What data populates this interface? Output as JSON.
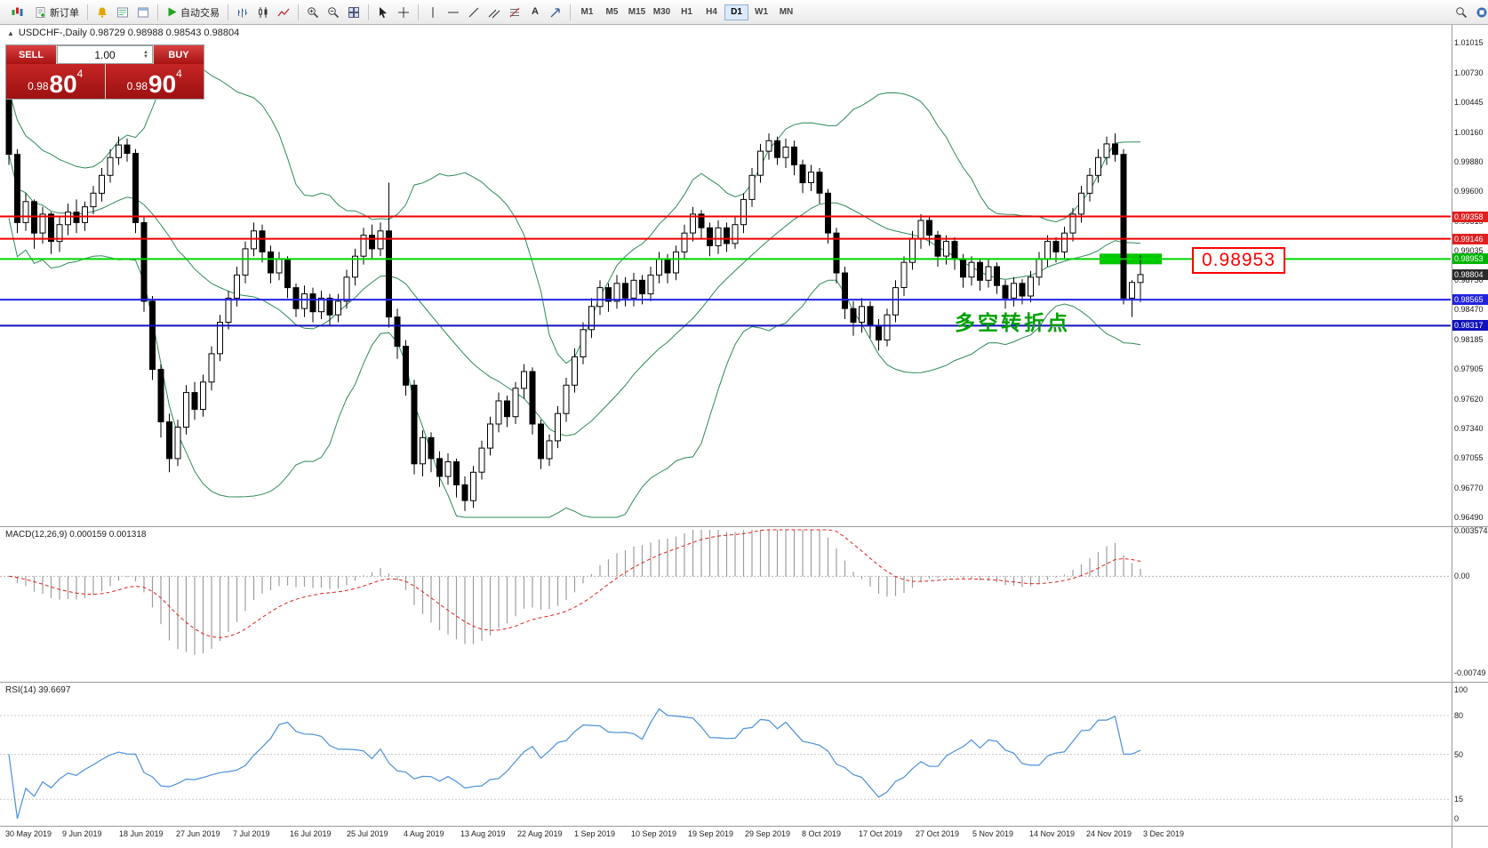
{
  "toolbar": {
    "new_order": "新订单",
    "auto_trading": "自动交易",
    "timeframes": [
      "M1",
      "M5",
      "M15",
      "M30",
      "H1",
      "H4",
      "D1",
      "W1",
      "MN"
    ],
    "active_timeframe": "D1"
  },
  "symbol_line": {
    "text": "USDCHF-,Daily 0.98729 0.98988 0.98543 0.98804"
  },
  "trade_panel": {
    "sell_label": "SELL",
    "buy_label": "BUY",
    "volume": "1.00",
    "sell_price_small": "0.98",
    "sell_price_big": "80",
    "sell_price_sup": "4",
    "buy_price_small": "0.98",
    "buy_price_big": "90",
    "buy_price_sup": "4",
    "panel_color": "#b81c1c"
  },
  "annotations": {
    "turning_point_text": "多空转折点",
    "turning_point_color": "#00a000",
    "price_callout": "0.98953",
    "callout_color": "#ff0000",
    "highlight_price": 0.98953,
    "highlight_color": "#00c800"
  },
  "levels": [
    {
      "price": 0.99358,
      "color": "#f00000",
      "width": 2,
      "type": "resistance"
    },
    {
      "price": 0.99146,
      "color": "#f00000",
      "width": 2,
      "type": "resistance"
    },
    {
      "price": 0.98953,
      "color": "#00d400",
      "width": 2,
      "type": "pivot"
    },
    {
      "price": 0.98565,
      "color": "#2222ee",
      "width": 2,
      "type": "support"
    },
    {
      "price": 0.98317,
      "color": "#1111bb",
      "width": 2,
      "type": "support"
    }
  ],
  "price_axis": {
    "ticks": [
      "1.01015",
      "1.00730",
      "1.00445",
      "1.00160",
      "0.99880",
      "0.99600",
      "0.99315",
      "0.99035",
      "0.98750",
      "0.98470",
      "0.98185",
      "0.97905",
      "0.97620",
      "0.97340",
      "0.97055",
      "0.96770",
      "0.96490"
    ],
    "badges": [
      {
        "value": "0.99358",
        "color": "#e02020"
      },
      {
        "value": "0.99146",
        "color": "#e02020"
      },
      {
        "value": "0.98953",
        "color": "#00b400"
      },
      {
        "value": "0.98804",
        "color": "#2b2b2b"
      },
      {
        "value": "0.98565",
        "color": "#2222dd"
      },
      {
        "value": "0.98317",
        "color": "#1111bb"
      }
    ]
  },
  "macd_panel": {
    "label": "MACD(12,26,9) 0.000159 0.001318",
    "axis_max": "0.003574",
    "axis_zero": "0.00",
    "axis_min": "-0.00749"
  },
  "rsi_panel": {
    "label": "RSI(14) 39.6697",
    "axis": [
      "100",
      "80",
      "50",
      "15",
      "0"
    ],
    "levels": [
      80,
      50,
      15
    ]
  },
  "dates": [
    "30 May 2019",
    "9 Jun 2019",
    "18 Jun 2019",
    "27 Jun 2019",
    "7 Jul 2019",
    "16 Jul 2019",
    "25 Jul 2019",
    "4 Aug 2019",
    "13 Aug 2019",
    "22 Aug 2019",
    "1 Sep 2019",
    "10 Sep 2019",
    "19 Sep 2019",
    "29 Sep 2019",
    "8 Oct 2019",
    "17 Oct 2019",
    "27 Oct 2019",
    "5 Nov 2019",
    "14 Nov 2019",
    "24 Nov 2019",
    "3 Dec 2019"
  ],
  "chart_data": {
    "type": "candlestick",
    "symbol": "USDCHF",
    "timeframe": "Daily",
    "price_range": [
      0.9649,
      1.01015
    ],
    "indicators": [
      "Bollinger Bands(20,2)",
      "MACD(12,26,9)",
      "RSI(14)"
    ],
    "ohlc": [
      [
        1.0055,
        1.006,
        0.9985,
        0.9995
      ],
      [
        0.9995,
        1.0,
        0.992,
        0.993
      ],
      [
        0.993,
        0.9958,
        0.9922,
        0.995
      ],
      [
        0.995,
        0.9952,
        0.9905,
        0.992
      ],
      [
        0.992,
        0.9945,
        0.991,
        0.9938
      ],
      [
        0.9938,
        0.994,
        0.99,
        0.9912
      ],
      [
        0.9912,
        0.9935,
        0.9902,
        0.9928
      ],
      [
        0.9928,
        0.9948,
        0.9918,
        0.994
      ],
      [
        0.994,
        0.9952,
        0.992,
        0.993
      ],
      [
        0.993,
        0.995,
        0.9922,
        0.9945
      ],
      [
        0.9945,
        0.9965,
        0.9938,
        0.9958
      ],
      [
        0.9958,
        0.9982,
        0.995,
        0.9975
      ],
      [
        0.9975,
        1.0,
        0.9968,
        0.9992
      ],
      [
        0.9992,
        1.0012,
        0.9985,
        1.0004
      ],
      [
        1.0004,
        1.001,
        0.9988,
        0.9996
      ],
      [
        0.9996,
        1.0,
        0.992,
        0.993
      ],
      [
        0.993,
        0.9935,
        0.9845,
        0.9855
      ],
      [
        0.9855,
        0.986,
        0.978,
        0.979
      ],
      [
        0.979,
        0.9795,
        0.9725,
        0.974
      ],
      [
        0.974,
        0.9748,
        0.9692,
        0.9705
      ],
      [
        0.9705,
        0.9742,
        0.9698,
        0.9735
      ],
      [
        0.9735,
        0.9775,
        0.9728,
        0.9768
      ],
      [
        0.9768,
        0.9778,
        0.9742,
        0.9752
      ],
      [
        0.9752,
        0.9785,
        0.9745,
        0.9778
      ],
      [
        0.9778,
        0.9812,
        0.977,
        0.9805
      ],
      [
        0.9805,
        0.9842,
        0.9798,
        0.9835
      ],
      [
        0.9835,
        0.9865,
        0.9828,
        0.9858
      ],
      [
        0.9858,
        0.9888,
        0.985,
        0.988
      ],
      [
        0.988,
        0.9912,
        0.9872,
        0.9905
      ],
      [
        0.9905,
        0.993,
        0.9898,
        0.9922
      ],
      [
        0.9922,
        0.9928,
        0.9892,
        0.9902
      ],
      [
        0.9902,
        0.9908,
        0.9872,
        0.9882
      ],
      [
        0.9882,
        0.9902,
        0.9875,
        0.9895
      ],
      [
        0.9895,
        0.9898,
        0.9858,
        0.9868
      ],
      [
        0.9868,
        0.9872,
        0.984,
        0.9848
      ],
      [
        0.9848,
        0.987,
        0.984,
        0.9862
      ],
      [
        0.9862,
        0.9868,
        0.9835,
        0.9845
      ],
      [
        0.9845,
        0.9865,
        0.9838,
        0.9858
      ],
      [
        0.9858,
        0.9862,
        0.9832,
        0.9842
      ],
      [
        0.9842,
        0.9862,
        0.9835,
        0.9855
      ],
      [
        0.9855,
        0.9885,
        0.9848,
        0.9878
      ],
      [
        0.9878,
        0.9905,
        0.987,
        0.9898
      ],
      [
        0.9898,
        0.9925,
        0.989,
        0.9918
      ],
      [
        0.9918,
        0.9928,
        0.9895,
        0.9905
      ],
      [
        0.9905,
        0.993,
        0.9898,
        0.9922
      ],
      [
        0.9922,
        0.9968,
        0.983,
        0.984
      ],
      [
        0.984,
        0.9848,
        0.98,
        0.9812
      ],
      [
        0.9812,
        0.9818,
        0.9765,
        0.9775
      ],
      [
        0.9775,
        0.978,
        0.969,
        0.97
      ],
      [
        0.97,
        0.9732,
        0.9688,
        0.9725
      ],
      [
        0.9725,
        0.973,
        0.9692,
        0.9705
      ],
      [
        0.9705,
        0.9712,
        0.9678,
        0.9688
      ],
      [
        0.9688,
        0.971,
        0.968,
        0.9702
      ],
      [
        0.9702,
        0.9705,
        0.9668,
        0.968
      ],
      [
        0.968,
        0.9688,
        0.9655,
        0.9665
      ],
      [
        0.9665,
        0.9698,
        0.9658,
        0.9692
      ],
      [
        0.9692,
        0.9722,
        0.9685,
        0.9715
      ],
      [
        0.9715,
        0.9745,
        0.9708,
        0.9738
      ],
      [
        0.9738,
        0.9768,
        0.973,
        0.976
      ],
      [
        0.976,
        0.9765,
        0.9735,
        0.9745
      ],
      [
        0.9745,
        0.9778,
        0.9738,
        0.9772
      ],
      [
        0.9772,
        0.9795,
        0.9762,
        0.9788
      ],
      [
        0.9788,
        0.9792,
        0.9728,
        0.9738
      ],
      [
        0.9738,
        0.9742,
        0.9695,
        0.9705
      ],
      [
        0.9705,
        0.9728,
        0.9698,
        0.9722
      ],
      [
        0.9722,
        0.9755,
        0.9715,
        0.9748
      ],
      [
        0.9748,
        0.9782,
        0.974,
        0.9775
      ],
      [
        0.9775,
        0.981,
        0.9768,
        0.9802
      ],
      [
        0.9802,
        0.9835,
        0.9795,
        0.9828
      ],
      [
        0.9828,
        0.9858,
        0.982,
        0.985
      ],
      [
        0.985,
        0.9875,
        0.9842,
        0.9868
      ],
      [
        0.9868,
        0.9872,
        0.9845,
        0.9855
      ],
      [
        0.9855,
        0.988,
        0.9848,
        0.9872
      ],
      [
        0.9872,
        0.9878,
        0.985,
        0.9858
      ],
      [
        0.9858,
        0.9882,
        0.985,
        0.9875
      ],
      [
        0.9875,
        0.988,
        0.9852,
        0.9862
      ],
      [
        0.9862,
        0.9888,
        0.9855,
        0.988
      ],
      [
        0.988,
        0.9902,
        0.9872,
        0.9895
      ],
      [
        0.9895,
        0.99,
        0.9872,
        0.9882
      ],
      [
        0.9882,
        0.9908,
        0.9875,
        0.9902
      ],
      [
        0.9902,
        0.9928,
        0.9895,
        0.992
      ],
      [
        0.992,
        0.9945,
        0.9912,
        0.9938
      ],
      [
        0.9938,
        0.9942,
        0.9915,
        0.9925
      ],
      [
        0.9925,
        0.993,
        0.9898,
        0.9908
      ],
      [
        0.9908,
        0.9932,
        0.99,
        0.9925
      ],
      [
        0.9925,
        0.993,
        0.9902,
        0.991
      ],
      [
        0.991,
        0.9935,
        0.9905,
        0.9928
      ],
      [
        0.9928,
        0.9958,
        0.992,
        0.9952
      ],
      [
        0.9952,
        0.9982,
        0.9945,
        0.9975
      ],
      [
        0.9975,
        1.0005,
        0.9968,
        0.9998
      ],
      [
        0.9998,
        1.0015,
        0.999,
        1.0008
      ],
      [
        1.0008,
        1.0012,
        0.9985,
        0.9992
      ],
      [
        0.9992,
        1.001,
        0.9982,
        1.0002
      ],
      [
        1.0002,
        1.0008,
        0.9975,
        0.9985
      ],
      [
        0.9985,
        0.999,
        0.9958,
        0.9968
      ],
      [
        0.9968,
        0.9985,
        0.996,
        0.9978
      ],
      [
        0.9978,
        0.9982,
        0.9948,
        0.9958
      ],
      [
        0.9958,
        0.9962,
        0.991,
        0.992
      ],
      [
        0.992,
        0.9925,
        0.9872,
        0.9882
      ],
      [
        0.9882,
        0.9888,
        0.9838,
        0.9848
      ],
      [
        0.9848,
        0.9855,
        0.9822,
        0.9835
      ],
      [
        0.9835,
        0.9858,
        0.9825,
        0.985
      ],
      [
        0.985,
        0.9855,
        0.982,
        0.9832
      ],
      [
        0.9832,
        0.9838,
        0.9808,
        0.9818
      ],
      [
        0.9818,
        0.9848,
        0.9812,
        0.9842
      ],
      [
        0.9842,
        0.9875,
        0.9835,
        0.9868
      ],
      [
        0.9868,
        0.9898,
        0.986,
        0.9892
      ],
      [
        0.9892,
        0.9922,
        0.9885,
        0.9915
      ],
      [
        0.9915,
        0.9938,
        0.9905,
        0.9932
      ],
      [
        0.9932,
        0.9936,
        0.9908,
        0.9918
      ],
      [
        0.9918,
        0.9922,
        0.9888,
        0.9898
      ],
      [
        0.9898,
        0.9918,
        0.989,
        0.9912
      ],
      [
        0.9912,
        0.9916,
        0.9885,
        0.9895
      ],
      [
        0.9895,
        0.99,
        0.9868,
        0.9878
      ],
      [
        0.9878,
        0.9898,
        0.987,
        0.9892
      ],
      [
        0.9892,
        0.9896,
        0.9865,
        0.9875
      ],
      [
        0.9875,
        0.9895,
        0.9868,
        0.9888
      ],
      [
        0.9888,
        0.9892,
        0.9862,
        0.987
      ],
      [
        0.987,
        0.9875,
        0.9848,
        0.9858
      ],
      [
        0.9858,
        0.9878,
        0.985,
        0.9872
      ],
      [
        0.9872,
        0.9876,
        0.9852,
        0.986
      ],
      [
        0.986,
        0.9884,
        0.9854,
        0.9878
      ],
      [
        0.9878,
        0.9902,
        0.987,
        0.9895
      ],
      [
        0.9895,
        0.9918,
        0.9888,
        0.9912
      ],
      [
        0.9912,
        0.9916,
        0.9892,
        0.9902
      ],
      [
        0.9902,
        0.9926,
        0.9895,
        0.992
      ],
      [
        0.992,
        0.9944,
        0.9912,
        0.9938
      ],
      [
        0.9938,
        0.9965,
        0.993,
        0.9958
      ],
      [
        0.9958,
        0.9982,
        0.995,
        0.9975
      ],
      [
        0.9975,
        1.0,
        0.9968,
        0.9992
      ],
      [
        0.9992,
        1.0012,
        0.9985,
        1.0005
      ],
      [
        1.0005,
        1.0015,
        0.9988,
        0.9995
      ],
      [
        0.9995,
        1.0,
        0.9852,
        0.9858
      ],
      [
        0.9858,
        0.9875,
        0.984,
        0.9873
      ],
      [
        0.98729,
        0.98988,
        0.98543,
        0.98804
      ]
    ]
  }
}
